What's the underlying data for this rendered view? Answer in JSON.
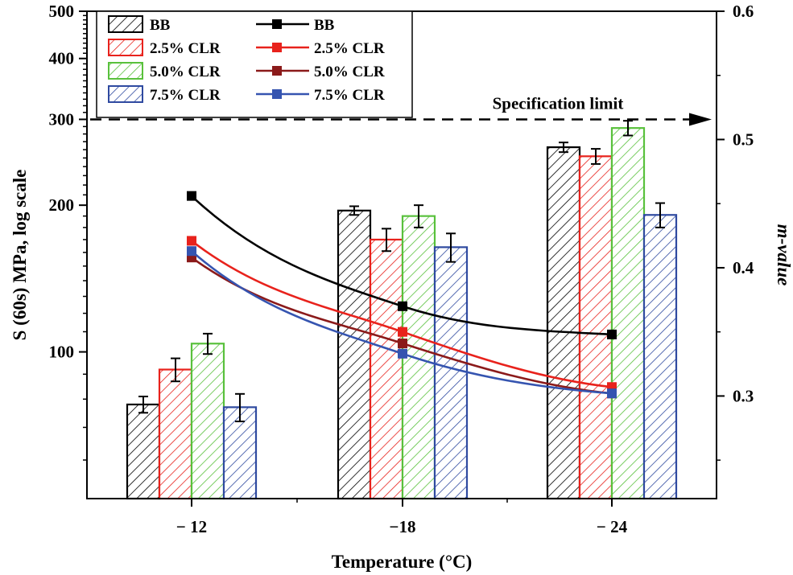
{
  "chart_data": {
    "type": "bar",
    "xlabel": "Temperature (°C)",
    "ylabel": "S (60s) MPa, log scale",
    "y2label": "m-value",
    "categories": [
      "− 12",
      "−18",
      "− 24"
    ],
    "y_scale": "log",
    "ylim": [
      50,
      500
    ],
    "y_ticks": [
      100,
      200,
      300,
      400,
      500
    ],
    "y2lim": [
      0.22,
      0.6
    ],
    "y2_ticks": [
      0.3,
      0.4,
      0.5,
      0.6
    ],
    "y2_tick_labels": [
      "0.3",
      "0.4",
      "0.5",
      "0.6"
    ],
    "bar_series": [
      {
        "name": "BB",
        "color": "#000000",
        "values": [
          78,
          195,
          263
        ],
        "errors": [
          3,
          4,
          6
        ]
      },
      {
        "name": "2.5% CLR",
        "color": "#e8221c",
        "values": [
          92,
          170,
          252
        ],
        "errors": [
          5,
          9,
          9
        ]
      },
      {
        "name": "5.0% CLR",
        "color": "#59c13c",
        "values": [
          104,
          190,
          288
        ],
        "errors": [
          5,
          10,
          10
        ]
      },
      {
        "name": "7.5% CLR",
        "color": "#2f4aa0",
        "values": [
          77,
          164,
          191
        ],
        "errors": [
          5,
          11,
          11
        ]
      }
    ],
    "line_series": [
      {
        "name": "BB",
        "color": "#000000",
        "values": [
          0.456,
          0.37,
          0.348
        ]
      },
      {
        "name": "2.5% CLR",
        "color": "#e8221c",
        "values": [
          0.421,
          0.35,
          0.307
        ]
      },
      {
        "name": "5.0% CLR",
        "color": "#8b1a1a",
        "values": [
          0.408,
          0.341,
          0.302
        ]
      },
      {
        "name": "7.5% CLR",
        "color": "#3554b0",
        "values": [
          0.413,
          0.333,
          0.302
        ]
      }
    ],
    "annotation": {
      "text": "Specification limit",
      "value": 300
    },
    "legend_position": "top-left"
  }
}
